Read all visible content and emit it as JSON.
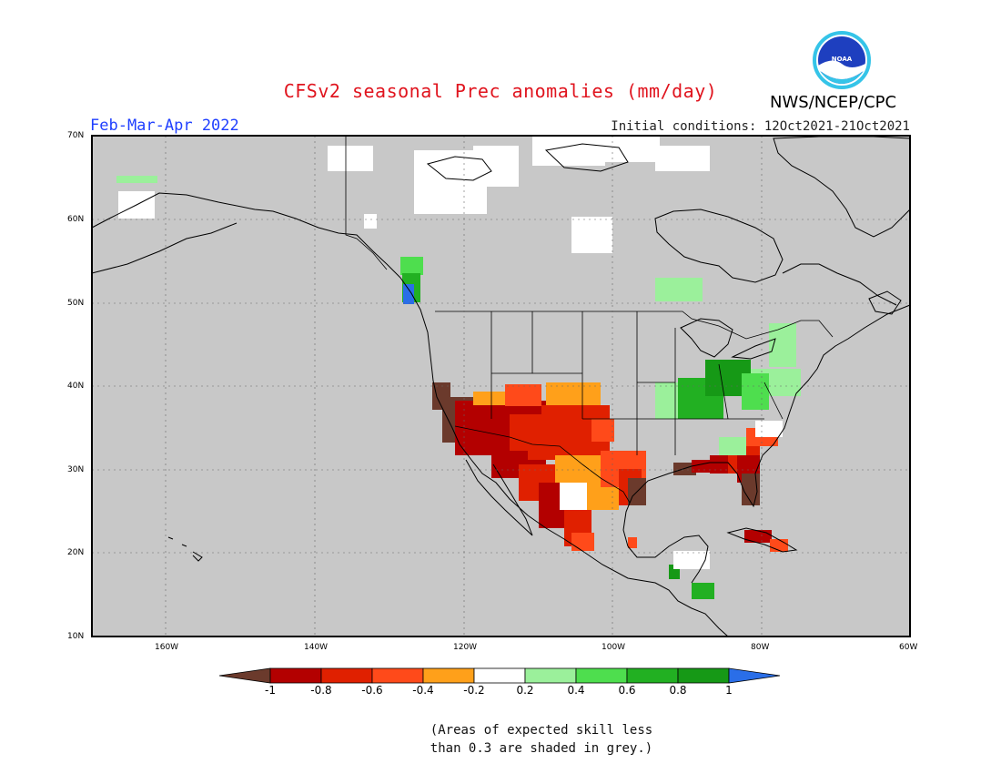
{
  "title": "CFSv2 seasonal Prec anomalies (mm/day)",
  "period": "Feb-Mar-Apr 2022",
  "initial_conditions": "Initial conditions: 12Oct2021-21Oct2021",
  "agency": "NWS/NCEP/CPC",
  "logo_text": "NOAA",
  "lat_labels": [
    "70N",
    "60N",
    "50N",
    "40N",
    "30N",
    "20N",
    "10N"
  ],
  "lon_labels": [
    "160W",
    "140W",
    "120W",
    "100W",
    "80W",
    "60W"
  ],
  "colorbar": {
    "labels": [
      "-1",
      "-0.8",
      "-0.6",
      "-0.4",
      "-0.2",
      "0.2",
      "0.4",
      "0.6",
      "0.8",
      "1"
    ],
    "colors": [
      "#6b3a2c",
      "#b30000",
      "#e02000",
      "#ff4a1a",
      "#ffa01a",
      "#ffffff",
      "#9bf09b",
      "#4ede4e",
      "#22b022",
      "#169916",
      "#2a6ee8"
    ]
  },
  "note_line1": "(Areas of expected skill less",
  "note_line2": "than 0.3 are shaded in grey.)",
  "colors": {
    "grey_mask": "#c8c8c8",
    "title_red": "#e0141e",
    "period_blue": "#1f3fff"
  }
}
